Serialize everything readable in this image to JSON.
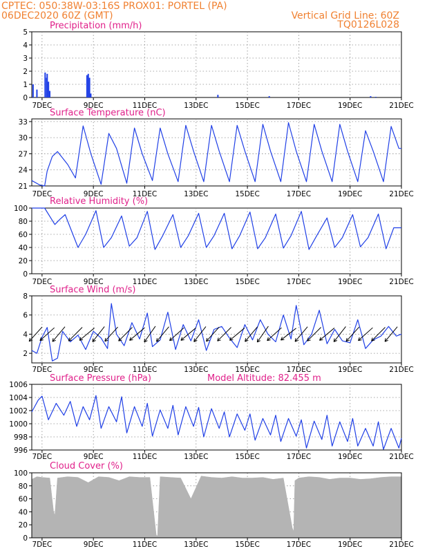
{
  "header": {
    "line1": "CPTEC:   050:38W-03:16S   PROX01: PORTEL (PA)",
    "line2": "06DEC2020 60Z (GMT)",
    "grid_note": "Vertical Grid Line: 60Z",
    "code": "TQ0126L028"
  },
  "colors": {
    "header": "#f08030",
    "title": "#e0208a",
    "series": "#1f3fe6",
    "cloud": "#b4b4b4",
    "grid": "#8a8a8a"
  },
  "x_ticks": [
    "7DEC",
    "9DEC",
    "11DEC",
    "13DEC",
    "15DEC",
    "17DEC",
    "19DEC",
    "21DEC"
  ],
  "chart_data": [
    {
      "type": "bar",
      "title": "Precipitation (mm/h)",
      "x_range": [
        "06DEC2020 18Z",
        "21DEC2020 00Z"
      ],
      "ylim": [
        0,
        5
      ],
      "yticks": [
        "0",
        "1",
        "2",
        "3",
        "4",
        "5"
      ],
      "grid": true,
      "x": [
        6.65,
        6.8,
        7.12,
        7.18,
        7.2,
        7.25,
        7.3,
        8.75,
        8.8,
        8.85,
        8.9,
        13.85,
        15.85,
        19.8,
        20.0
      ],
      "values": [
        1.0,
        0.6,
        1.9,
        1.5,
        1.8,
        1.2,
        0.5,
        1.7,
        1.8,
        1.5,
        0.3,
        0.2,
        0.1,
        0.1,
        0.05
      ]
    },
    {
      "type": "line",
      "title": "Surface Temperature (nC)",
      "ylim": [
        21,
        33.5
      ],
      "yticks": [
        "21",
        "24",
        "27",
        "30",
        "33"
      ],
      "grid": true,
      "x": [
        6.6,
        6.9,
        7.1,
        7.2,
        7.4,
        7.6,
        8.0,
        8.3,
        8.6,
        8.9,
        9.3,
        9.6,
        9.9,
        10.3,
        10.6,
        10.9,
        11.3,
        11.6,
        11.9,
        12.3,
        12.6,
        12.9,
        13.3,
        13.6,
        13.9,
        14.3,
        14.6,
        14.9,
        15.3,
        15.6,
        15.9,
        16.3,
        16.6,
        16.9,
        17.3,
        17.6,
        17.9,
        18.3,
        18.6,
        18.9,
        19.3,
        19.6,
        19.9,
        20.3,
        20.6,
        20.9,
        21.0
      ],
      "values": [
        22.0,
        21.2,
        21.0,
        23.8,
        26.5,
        27.4,
        25.0,
        22.5,
        32.2,
        27.0,
        21.3,
        30.8,
        28.0,
        21.5,
        31.8,
        27.0,
        22.0,
        31.8,
        27.0,
        21.8,
        32.3,
        27.5,
        21.8,
        32.3,
        27.5,
        21.8,
        32.3,
        27.5,
        21.8,
        32.5,
        27.5,
        21.8,
        32.8,
        27.5,
        21.8,
        32.5,
        27.5,
        21.8,
        32.5,
        27.5,
        21.8,
        31.3,
        27.5,
        21.8,
        32.1,
        28.0,
        28.0
      ]
    },
    {
      "type": "line",
      "title": "Relative Humidity (%)",
      "ylim": [
        0,
        100
      ],
      "yticks": [
        "0",
        "20",
        "40",
        "60",
        "80",
        "100"
      ],
      "grid": true,
      "x": [
        6.6,
        7.1,
        7.5,
        7.7,
        7.9,
        8.4,
        8.7,
        9.1,
        9.4,
        9.7,
        10.1,
        10.4,
        10.7,
        11.1,
        11.4,
        11.7,
        12.1,
        12.4,
        12.7,
        13.1,
        13.4,
        13.7,
        14.1,
        14.4,
        14.7,
        15.1,
        15.4,
        15.7,
        16.1,
        16.4,
        16.7,
        17.1,
        17.4,
        17.7,
        18.1,
        18.4,
        18.7,
        19.1,
        19.4,
        19.7,
        20.1,
        20.4,
        20.7,
        21.0
      ],
      "values": [
        100,
        100,
        75,
        83,
        90,
        40,
        60,
        96,
        40,
        55,
        88,
        42,
        55,
        95,
        37,
        58,
        90,
        40,
        58,
        92,
        40,
        58,
        92,
        38,
        58,
        94,
        38,
        55,
        91,
        39,
        58,
        95,
        37,
        58,
        85,
        40,
        55,
        90,
        41,
        55,
        91,
        38,
        70,
        70
      ]
    },
    {
      "type": "line",
      "title": "Surface Wind (m/s)",
      "ylim": [
        1,
        8
      ],
      "yticks": [
        "2",
        "4",
        "6",
        "8"
      ],
      "grid": true,
      "x": [
        6.6,
        6.8,
        7.0,
        7.2,
        7.4,
        7.6,
        7.8,
        8.1,
        8.4,
        8.7,
        9.0,
        9.3,
        9.55,
        9.7,
        9.9,
        10.2,
        10.5,
        10.8,
        11.1,
        11.3,
        11.6,
        11.9,
        12.2,
        12.5,
        12.8,
        13.1,
        13.4,
        13.7,
        14.0,
        14.3,
        14.6,
        14.9,
        15.2,
        15.5,
        15.8,
        16.1,
        16.4,
        16.7,
        16.9,
        17.2,
        17.5,
        17.8,
        18.1,
        18.4,
        18.7,
        19.0,
        19.3,
        19.6,
        19.9,
        20.2,
        20.5,
        20.8,
        21.0
      ],
      "values": [
        2.3,
        2.0,
        3.7,
        4.7,
        1.2,
        1.5,
        4.3,
        3.2,
        3.9,
        2.4,
        4.3,
        3.6,
        2.5,
        7.2,
        4.0,
        2.8,
        5.2,
        3.5,
        6.2,
        2.7,
        3.4,
        6.3,
        2.4,
        5.0,
        3.3,
        5.5,
        2.3,
        4.5,
        4.8,
        3.6,
        2.6,
        5.0,
        3.4,
        5.5,
        4.0,
        3.2,
        6.0,
        3.5,
        7.0,
        2.9,
        4.0,
        6.5,
        3.0,
        4.5,
        3.3,
        3.1,
        5.5,
        2.5,
        3.4,
        3.8,
        4.8,
        3.8,
        4.0
      ],
      "barb_x": [
        6.75,
        7.2,
        7.65,
        8.3,
        8.75,
        9.2,
        9.7,
        10.25,
        10.7,
        11.2,
        11.7,
        12.25,
        12.7,
        13.15,
        13.65,
        14.1,
        14.6,
        15.15,
        15.6,
        16.05,
        16.6,
        17.1,
        17.6,
        18.1,
        18.6,
        19.1,
        19.6,
        20.1,
        20.6
      ],
      "barb_dir_deg": [
        48,
        42,
        50,
        45,
        40,
        52,
        48,
        45,
        40,
        55,
        50,
        42,
        40,
        52,
        48,
        45,
        40,
        50,
        55,
        42,
        38,
        50,
        45,
        40,
        52,
        48,
        42,
        45,
        50
      ]
    },
    {
      "type": "line",
      "title": "Surface Pressure (hPa)",
      "annotation": "Model Altitude: 82.455 m",
      "ylim": [
        996,
        1006
      ],
      "yticks": [
        "996",
        "998",
        "1000",
        "1002",
        "1004",
        "1006"
      ],
      "grid": true,
      "x": [
        6.6,
        6.85,
        7.0,
        7.25,
        7.55,
        7.85,
        8.1,
        8.35,
        8.6,
        8.85,
        9.1,
        9.3,
        9.6,
        9.9,
        10.1,
        10.3,
        10.6,
        10.9,
        11.1,
        11.3,
        11.6,
        11.9,
        12.1,
        12.3,
        12.6,
        12.9,
        13.1,
        13.3,
        13.6,
        13.9,
        14.1,
        14.3,
        14.6,
        14.9,
        15.1,
        15.3,
        15.6,
        15.9,
        16.1,
        16.3,
        16.6,
        16.9,
        17.1,
        17.3,
        17.6,
        17.9,
        18.1,
        18.3,
        18.6,
        18.9,
        19.1,
        19.3,
        19.6,
        19.9,
        20.1,
        20.3,
        20.6,
        20.9,
        21.0
      ],
      "values": [
        1001.8,
        1003.6,
        1004.2,
        1000.6,
        1003.1,
        1001.3,
        1003.4,
        999.6,
        1002.6,
        1000.6,
        1004.3,
        999.3,
        1002.6,
        1000.3,
        1004.1,
        998.6,
        1002.6,
        999.6,
        1003.1,
        998.1,
        1002.1,
        999.3,
        1002.8,
        998.3,
        1002.6,
        999.6,
        1002.5,
        998.0,
        1002.3,
        999.3,
        1001.8,
        998.0,
        1001.5,
        999.0,
        1001.5,
        997.5,
        1000.8,
        998.3,
        1001.3,
        997.3,
        1000.8,
        998.1,
        1000.6,
        996.3,
        1000.4,
        997.6,
        1001.3,
        996.6,
        1000.3,
        997.3,
        1000.8,
        996.6,
        999.3,
        996.6,
        1000.3,
        996.1,
        999.3,
        996.3,
        997.8
      ]
    },
    {
      "type": "area",
      "title": "Cloud Cover (%)",
      "ylim": [
        0,
        100
      ],
      "yticks": [
        "0",
        "20",
        "40",
        "60",
        "80",
        "100"
      ],
      "grid": true,
      "x": [
        6.6,
        6.8,
        7.0,
        7.3,
        7.45,
        7.5,
        7.6,
        8.0,
        8.4,
        8.8,
        9.2,
        9.6,
        10.0,
        10.4,
        10.8,
        11.2,
        11.45,
        11.5,
        11.6,
        12.0,
        12.4,
        12.8,
        13.2,
        13.6,
        14.0,
        14.4,
        14.8,
        15.2,
        15.6,
        16.0,
        16.4,
        16.75,
        16.8,
        16.85,
        17.0,
        17.4,
        17.8,
        18.2,
        18.6,
        19.0,
        19.4,
        19.8,
        20.2,
        20.6,
        21.0
      ],
      "values": [
        90,
        94,
        93,
        92,
        40,
        35,
        92,
        94,
        93,
        85,
        94,
        93,
        88,
        94,
        93,
        93,
        4,
        3,
        94,
        93,
        92,
        60,
        95,
        93,
        92,
        94,
        92,
        92,
        93,
        90,
        92,
        15,
        10,
        88,
        92,
        94,
        93,
        90,
        92,
        92,
        90,
        91,
        93,
        94,
        94
      ]
    }
  ]
}
